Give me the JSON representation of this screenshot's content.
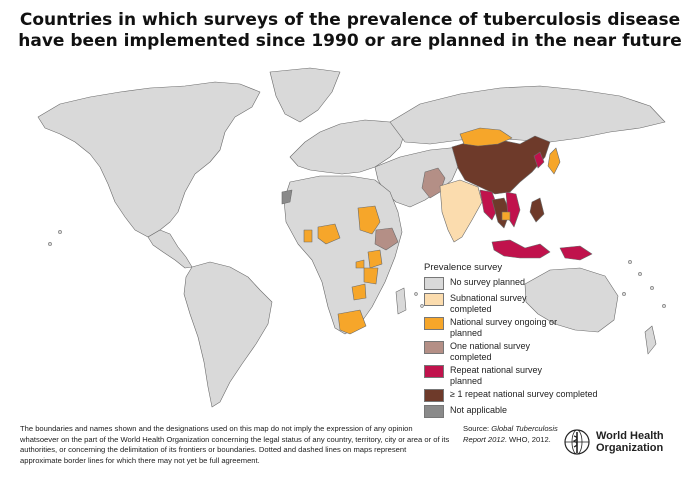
{
  "title": {
    "line1": "Countries in which surveys of the prevalence of tuberculosis disease",
    "line2": "have been implemented since 1990 or are planned in the near future"
  },
  "legend": {
    "title": "Prevalence survey",
    "items": [
      {
        "label": "No survey planned",
        "color": "#d9d9d9"
      },
      {
        "label": "Subnational survey completed",
        "color": "#fbdcae"
      },
      {
        "label": "National survey ongoing or planned",
        "color": "#f6a62a"
      },
      {
        "label": "One national survey completed",
        "color": "#b48f86"
      },
      {
        "label": "Repeat national survey planned",
        "color": "#c0124c"
      },
      {
        "label": "≥ 1 repeat national survey completed",
        "color": "#6e3a2a"
      },
      {
        "label": "Not applicable",
        "color": "#8a8a8a"
      }
    ]
  },
  "colors": {
    "ocean": "#ffffff",
    "border": "#6b6b6b"
  },
  "disclaimer": "The boundaries and names shown and the designations used on this map do not imply the expression of any opinion whatsoever on the part of the World Health Organization concerning the legal status of any country, territory, city or area or of its authorities, or concerning the delimitation of its frontiers or boundaries. Dotted and dashed lines on maps represent approximate border lines for which there may not yet be full agreement.",
  "source": {
    "prefix": "Source: ",
    "title": "Global Tuberculosis Report 2012",
    "suffix": ". WHO, 2012."
  },
  "logo": {
    "line1": "World Health",
    "line2": "Organization",
    "icon": "who-emblem-icon"
  }
}
